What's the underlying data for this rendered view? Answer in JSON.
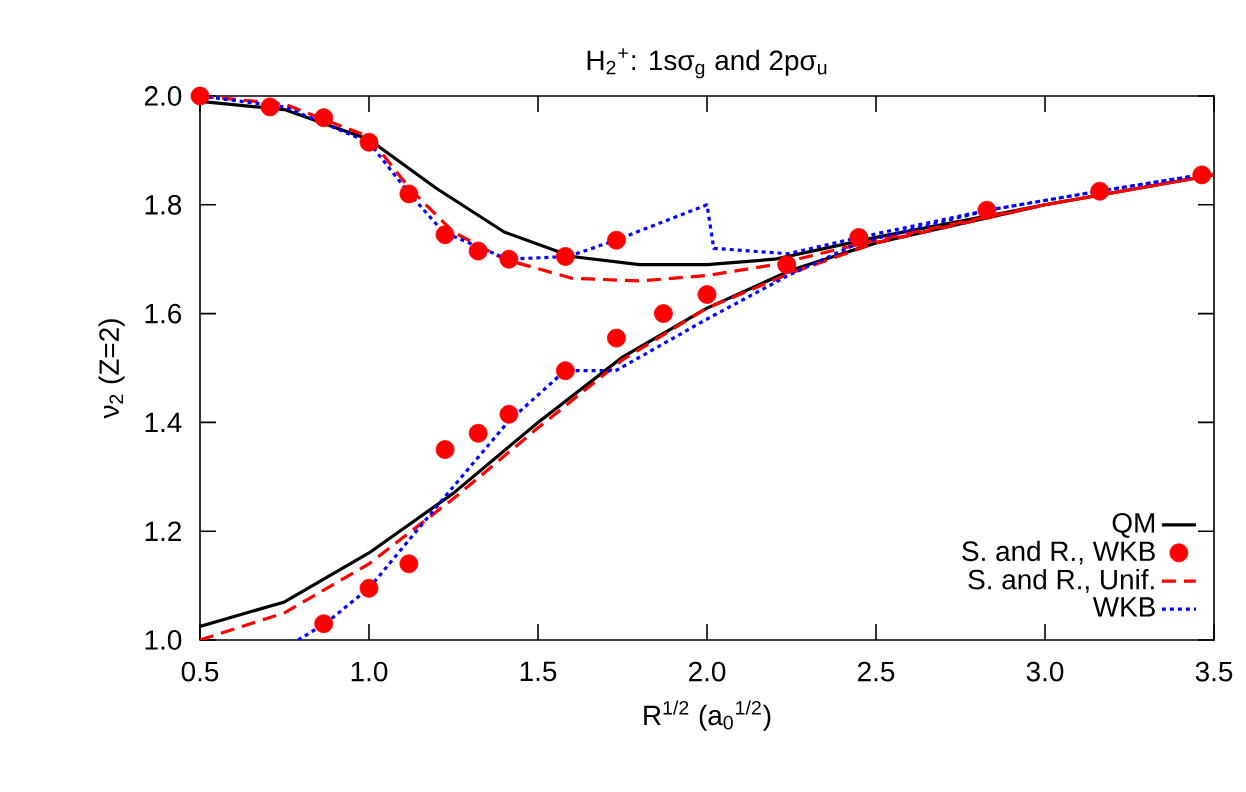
{
  "chart_data": {
    "type": "line",
    "title": "H$_{2}$$^{+}$: 1sσ$_{g}$ and 2pσ$_{u}$",
    "xlabel": "R$^{1/2}$ (a$_{0}$$^{1/2}$)",
    "ylabel": "ν$_{2}$ (Z=2)",
    "xlim": [
      0.5,
      3.5
    ],
    "ylim": [
      1.0,
      2.0
    ],
    "xticks": [
      {
        "value": 0.5,
        "label": "0.5"
      },
      {
        "value": 1.0,
        "label": "1.0"
      },
      {
        "value": 1.5,
        "label": "1.5"
      },
      {
        "value": 2.0,
        "label": "2.0"
      },
      {
        "value": 2.5,
        "label": "2.5"
      },
      {
        "value": 3.0,
        "label": "3.0"
      },
      {
        "value": 3.5,
        "label": "3.5"
      }
    ],
    "yticks": [
      {
        "value": 1.0,
        "label": "1.0"
      },
      {
        "value": 1.2,
        "label": "1.2"
      },
      {
        "value": 1.4,
        "label": "1.4"
      },
      {
        "value": 1.6,
        "label": "1.6"
      },
      {
        "value": 1.8,
        "label": "1.8"
      },
      {
        "value": 2.0,
        "label": "2.0"
      }
    ],
    "grid": false,
    "legend": "bottom right",
    "series": [
      {
        "name": "QM",
        "color": "#000000",
        "line_style": "solid",
        "marker": "none",
        "x": [
          0.5,
          0.75,
          1.0,
          1.2,
          1.4,
          1.6,
          1.8,
          2.0,
          2.2,
          2.5,
          3.0,
          3.5,
          null,
          0.5,
          0.75,
          1.0,
          1.25,
          1.5,
          1.75,
          2.0,
          2.25,
          2.5,
          3.0,
          3.5
        ],
        "values": [
          1.99,
          1.975,
          1.92,
          1.83,
          1.75,
          1.705,
          1.69,
          1.69,
          1.7,
          1.74,
          1.8,
          1.855,
          null,
          1.025,
          1.07,
          1.16,
          1.27,
          1.4,
          1.52,
          1.61,
          1.68,
          1.73,
          1.8,
          1.855
        ]
      },
      {
        "name": "S. and R., WKB",
        "type": "scatter",
        "color": "#ff0000",
        "marker": "circle",
        "x": [
          0.5,
          0.707,
          0.866,
          1.0,
          1.118,
          1.225,
          1.323,
          1.414,
          1.581,
          1.732,
          2.236,
          2.449,
          2.828,
          3.162,
          3.464,
          0.866,
          1.0,
          1.118,
          1.225,
          1.323,
          1.414,
          1.581,
          1.732,
          1.871,
          2.0
        ],
        "values": [
          2.0,
          1.98,
          1.96,
          1.915,
          1.82,
          1.745,
          1.715,
          1.7,
          1.705,
          1.735,
          1.69,
          1.74,
          1.79,
          1.825,
          1.855,
          1.03,
          1.095,
          1.14,
          1.35,
          1.38,
          1.415,
          1.495,
          1.555,
          1.6,
          1.635
        ]
      },
      {
        "name": "S. and R., Unif.",
        "color": "#ff0000",
        "line_style": "dashed",
        "marker": "none",
        "x": [
          0.5,
          0.75,
          1.0,
          1.12,
          1.25,
          1.4,
          1.6,
          1.8,
          2.0,
          2.2,
          2.5,
          3.0,
          3.5,
          null,
          0.5,
          0.75,
          1.0,
          1.25,
          1.5,
          1.75,
          2.0,
          2.25,
          2.5,
          3.0,
          3.5
        ],
        "values": [
          2.0,
          1.985,
          1.925,
          1.83,
          1.75,
          1.7,
          1.665,
          1.66,
          1.67,
          1.69,
          1.735,
          1.8,
          1.855,
          null,
          1.0,
          1.05,
          1.14,
          1.26,
          1.39,
          1.515,
          1.61,
          1.675,
          1.73,
          1.8,
          1.855
        ]
      },
      {
        "name": "WKB",
        "color": "#0000ff",
        "line_style": "dotted",
        "marker": "none",
        "x": [
          0.5,
          0.75,
          1.0,
          1.12,
          1.22,
          1.41,
          1.59,
          1.73,
          2.0,
          2.02,
          2.24,
          2.45,
          2.83,
          3.16,
          3.46,
          null,
          0.79,
          0.87,
          1.0,
          1.22,
          1.41,
          1.58,
          1.73,
          2.0,
          2.24,
          2.45,
          2.83,
          3.16,
          3.46
        ],
        "values": [
          2.0,
          1.98,
          1.915,
          1.82,
          1.75,
          1.7,
          1.705,
          1.735,
          1.8,
          1.72,
          1.71,
          1.74,
          1.79,
          1.825,
          1.855,
          null,
          1.0,
          1.03,
          1.095,
          1.26,
          1.4,
          1.495,
          1.495,
          1.59,
          1.67,
          1.73,
          1.79,
          1.825,
          1.855
        ]
      }
    ]
  }
}
